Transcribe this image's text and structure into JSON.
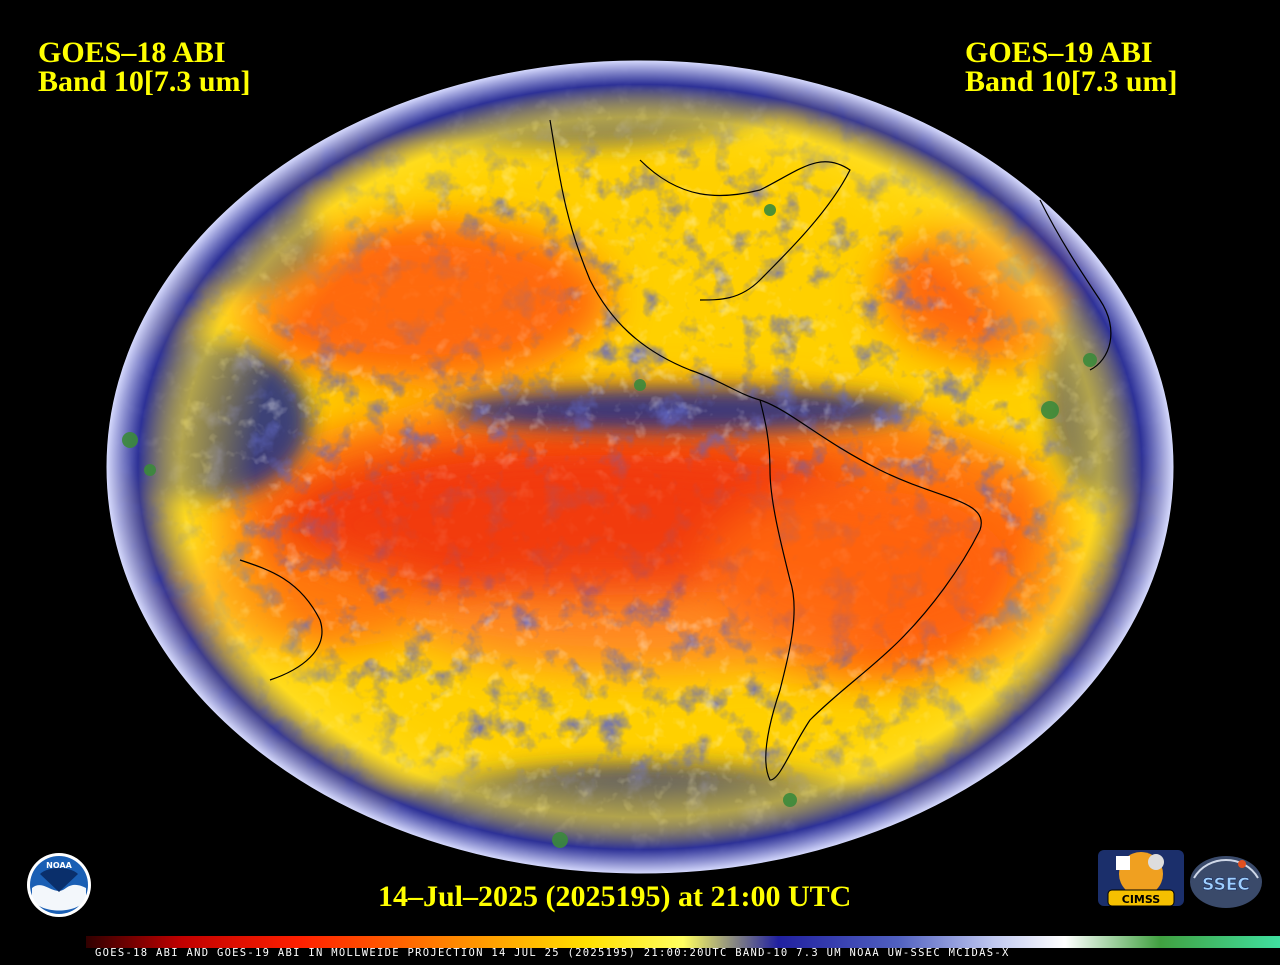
{
  "header": {
    "left_line1": "GOES–18 ABI",
    "left_line2": "Band 10[7.3 um]",
    "right_line1": "GOES–19 ABI",
    "right_line2": "Band 10[7.3 um]"
  },
  "timestamp": "14–Jul–2025 (2025195) at 21:00 UTC",
  "colorbar_caption": "GOES-18 ABI AND GOES-19 ABI IN MOLLWEIDE PROJECTION 14 JUL 25 (2025195) 21:00:20UTC BAND-10 7.3 UM NOAA UW-SSEC MCIDAS-X",
  "logos": {
    "noaa": "NOAA",
    "cimss": "CIMSS",
    "ssec": "SSEC"
  },
  "colors": {
    "text": "#ffff00",
    "background": "#000000",
    "warm_dry": "#e01808",
    "moderate": "#ff8a10",
    "mid": "#ffd800",
    "moist": "#1a1f86",
    "very_moist": "#ffffff",
    "coldest": "#3a8a3a"
  },
  "icons": [
    "noaa-logo-icon",
    "cimss-logo-icon",
    "ssec-logo-icon"
  ]
}
